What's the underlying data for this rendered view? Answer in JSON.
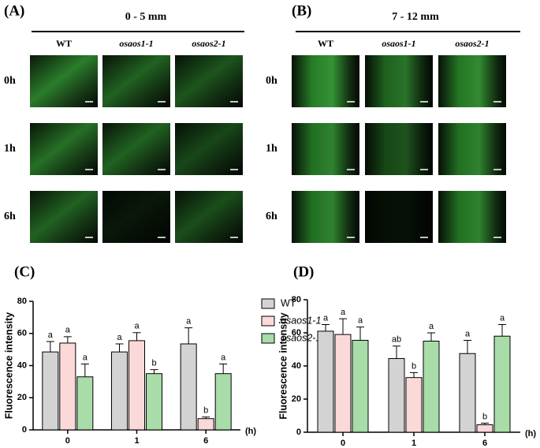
{
  "panels": [
    {
      "label": "(A)",
      "range": "0 - 5 mm",
      "columns": [
        "WT",
        "osaos1-1",
        "osaos2-1"
      ],
      "rows": [
        "0h",
        "1h",
        "6h"
      ]
    },
    {
      "label": "(B)",
      "range": "7 - 12 mm",
      "columns": [
        "WT",
        "osaos1-1",
        "osaos2-1"
      ],
      "rows": [
        "0h",
        "1h",
        "6h"
      ]
    }
  ],
  "chart_data": [
    {
      "type": "bar",
      "panel_label": "(C)",
      "y_label": "Fluorescence intensity",
      "x_unit": "(h)",
      "categories": [
        "0",
        "1",
        "6"
      ],
      "ylim": [
        0,
        80
      ],
      "yticks": [
        0,
        20,
        40,
        60,
        80
      ],
      "legend": true,
      "series": [
        {
          "name": "WT",
          "color": "#d3d3d3",
          "values": [
            48.5,
            48.5,
            53.5
          ],
          "errors": [
            6.5,
            5,
            10
          ],
          "significance": [
            "a",
            "a",
            "a"
          ]
        },
        {
          "name": "osaos1-1",
          "color": "#fcd9d9",
          "values": [
            54,
            55.5,
            7
          ],
          "errors": [
            4,
            5,
            1
          ],
          "significance": [
            "a",
            "a",
            "b"
          ]
        },
        {
          "name": "osaos2-1",
          "color": "#a8dca8",
          "values": [
            33,
            35,
            35
          ],
          "errors": [
            8,
            2.5,
            6
          ],
          "significance": [
            "a",
            "b",
            "a"
          ]
        }
      ]
    },
    {
      "type": "bar",
      "panel_label": "(D)",
      "y_label": "Fluorescence intensity",
      "x_unit": "(h)",
      "categories": [
        "0",
        "1",
        "6"
      ],
      "ylim": [
        0,
        80
      ],
      "yticks": [
        0,
        20,
        40,
        60,
        80
      ],
      "legend": false,
      "series": [
        {
          "color": "#d3d3d3",
          "values": [
            61,
            44.5,
            47.5
          ],
          "errors": [
            4,
            7.5,
            8
          ],
          "significance": [
            "a",
            "ab",
            "a"
          ]
        },
        {
          "color": "#fcd9d9",
          "values": [
            59,
            33,
            4.5
          ],
          "errors": [
            9.5,
            3,
            1
          ],
          "significance": [
            "a",
            "b",
            "b"
          ]
        },
        {
          "color": "#a8dca8",
          "values": [
            55.5,
            55,
            58
          ],
          "errors": [
            8,
            5,
            7
          ],
          "significance": [
            "a",
            "a",
            "a"
          ]
        }
      ]
    }
  ]
}
